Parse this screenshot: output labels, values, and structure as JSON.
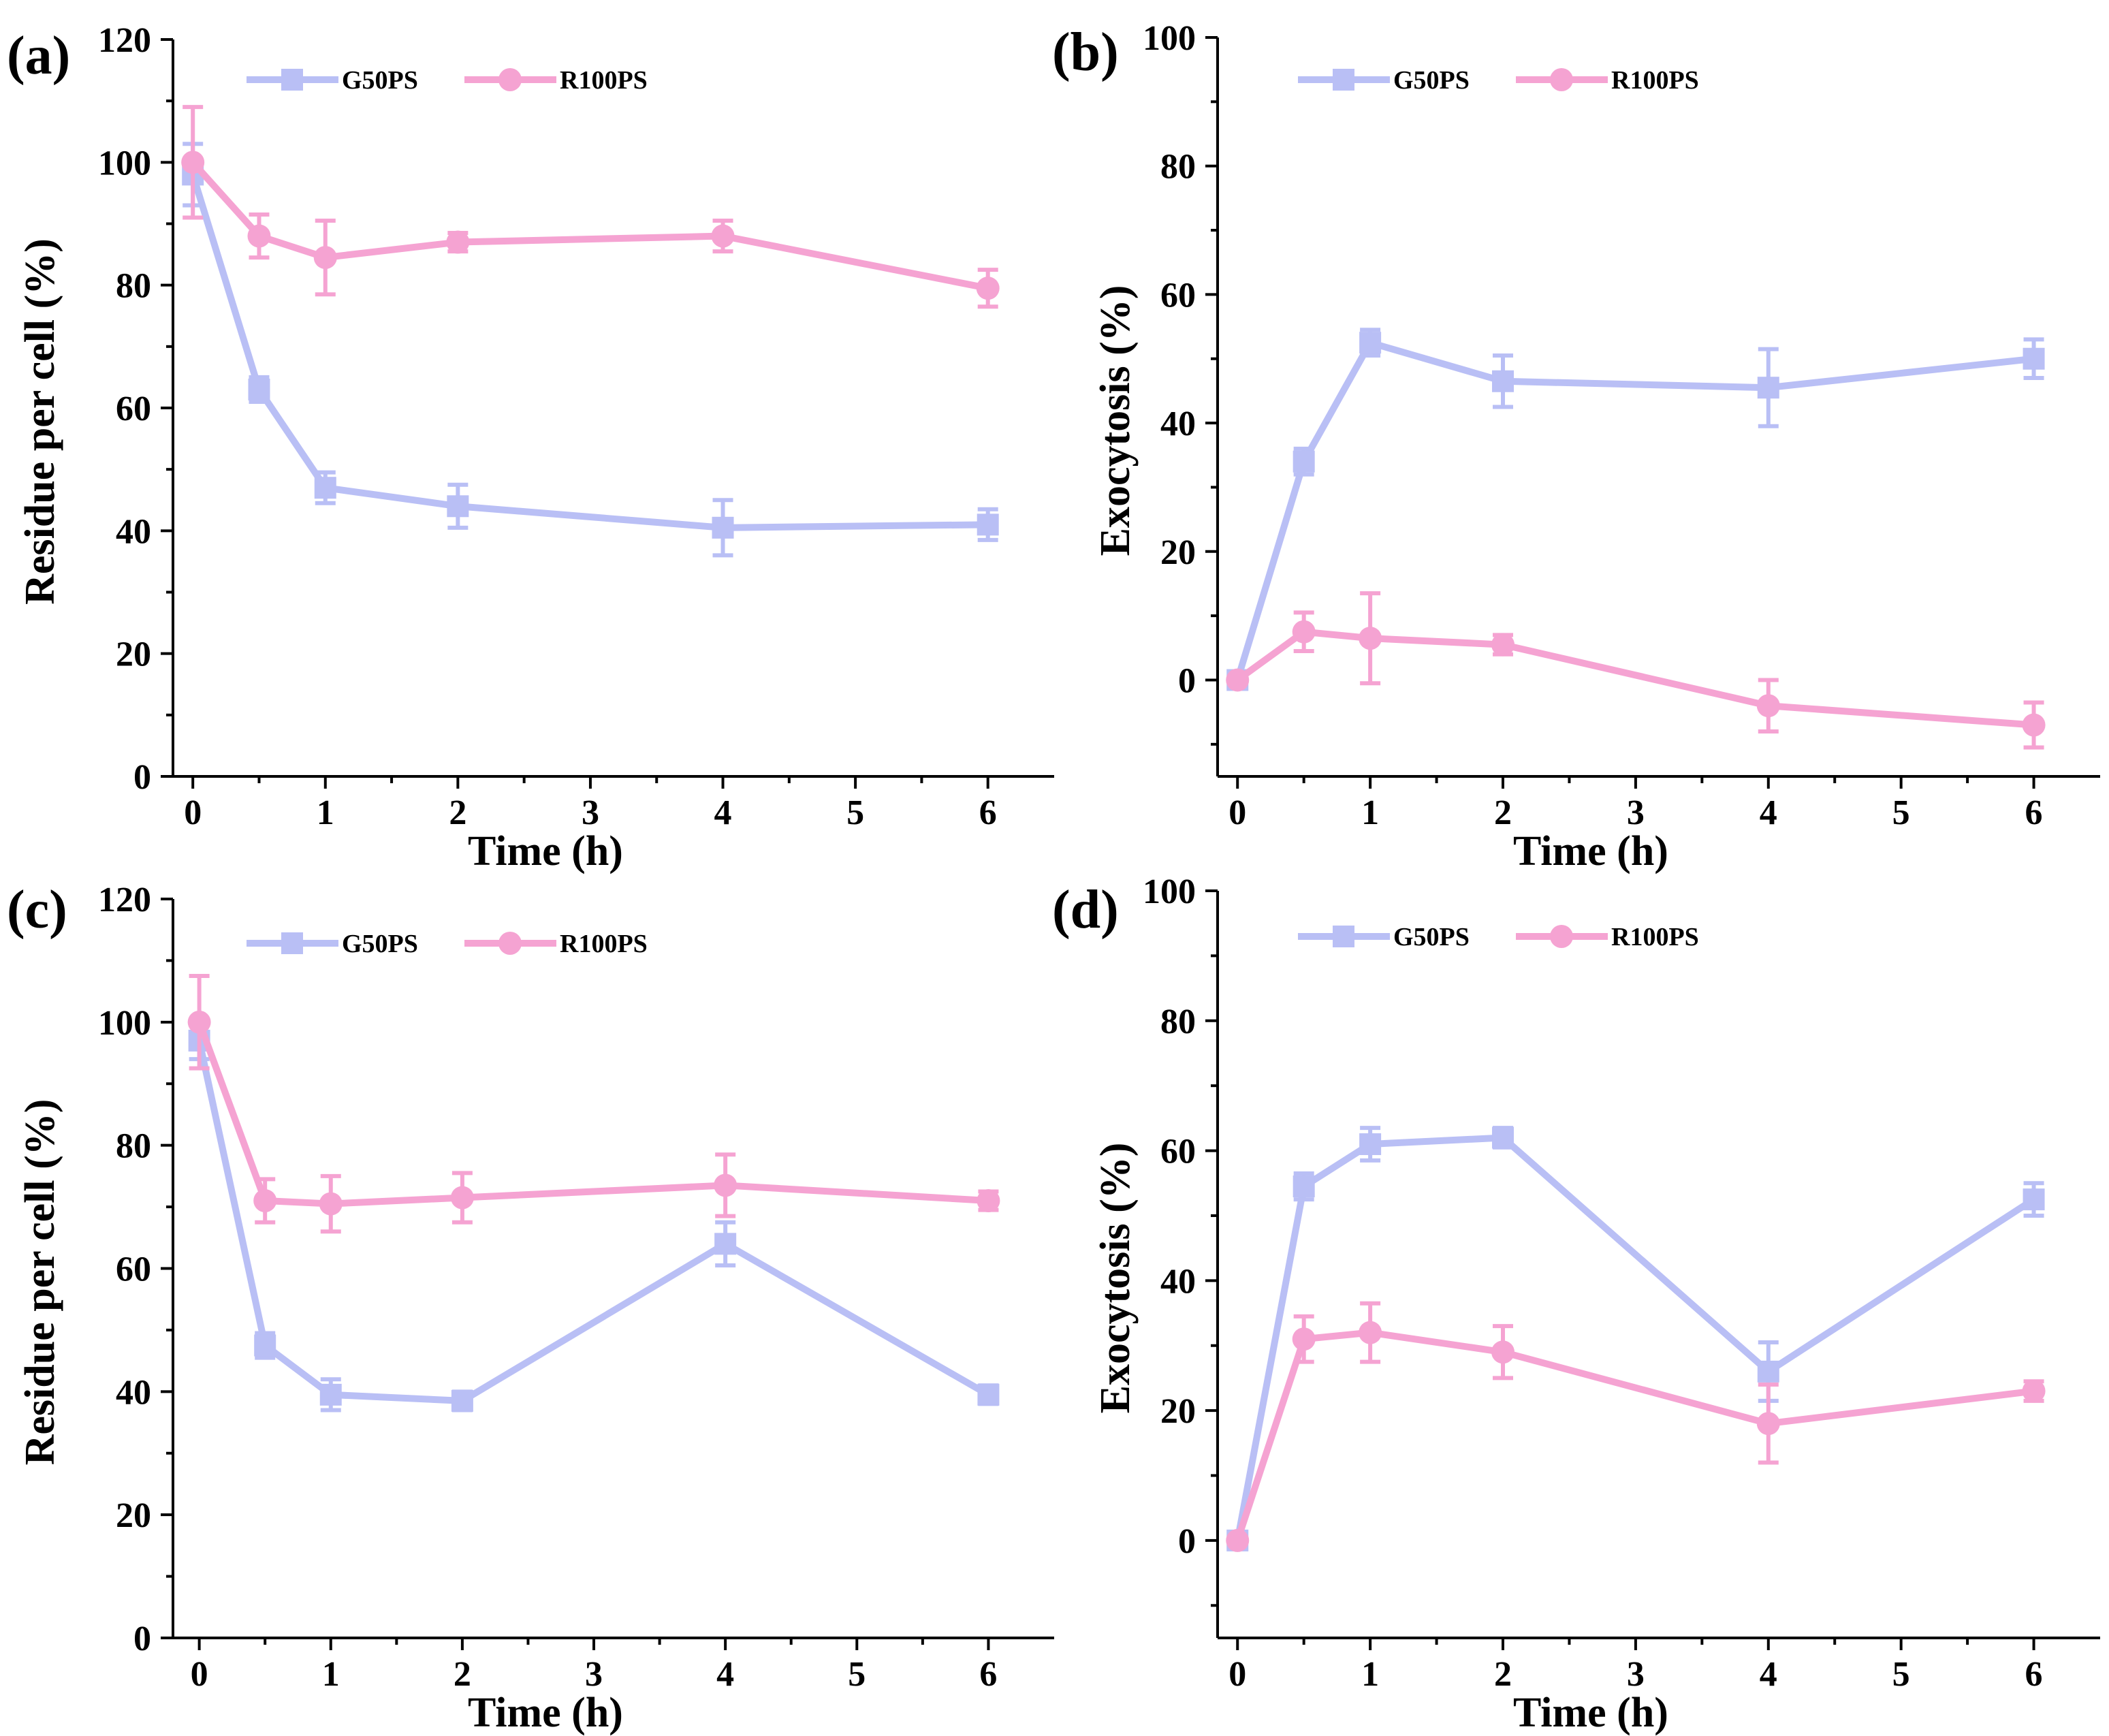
{
  "colors": {
    "G50PS": "#b9bff5",
    "R100PS": "#f5a3d2"
  },
  "chart_data": [
    {
      "type": "line",
      "panel_label": "(a)",
      "title": "",
      "xlabel": "Time (h)",
      "ylabel": "Residue per cell (%)",
      "xlim": [
        -0.15,
        6.5
      ],
      "ylim": [
        0,
        120
      ],
      "xticks": [
        0,
        1,
        2,
        3,
        4,
        5,
        6
      ],
      "yticks": [
        0,
        20,
        40,
        60,
        80,
        100,
        120
      ],
      "legend_position": "top",
      "x": [
        0,
        0.5,
        1,
        2,
        4,
        6
      ],
      "series": [
        {
          "name": "G50PS",
          "marker": "square",
          "values": [
            98,
            63,
            47,
            44,
            40.5,
            41
          ],
          "errors": [
            5,
            2,
            2.5,
            3.5,
            4.5,
            2.5
          ]
        },
        {
          "name": "R100PS",
          "marker": "circle",
          "values": [
            100,
            88,
            84.5,
            87,
            88,
            79.5
          ],
          "errors": [
            9,
            3.5,
            6,
            1.5,
            2.5,
            3
          ]
        }
      ]
    },
    {
      "type": "line",
      "panel_label": "(b)",
      "title": "",
      "xlabel": "Time (h)",
      "ylabel": "Exocytosis (%)",
      "xlim": [
        -0.15,
        6.5
      ],
      "ylim": [
        -15,
        100
      ],
      "xticks": [
        0,
        1,
        2,
        3,
        4,
        5,
        6
      ],
      "yticks": [
        0,
        20,
        40,
        60,
        80,
        100
      ],
      "legend_position": "top",
      "x": [
        0,
        0.5,
        1,
        2,
        4,
        6
      ],
      "series": [
        {
          "name": "G50PS",
          "marker": "square",
          "values": [
            0,
            34,
            52.5,
            46.5,
            45.5,
            50
          ],
          "errors": [
            0.5,
            2,
            2,
            4,
            6,
            3
          ]
        },
        {
          "name": "R100PS",
          "marker": "circle",
          "values": [
            0,
            7.5,
            6.5,
            5.5,
            -4,
            -7
          ],
          "errors": [
            0.5,
            3,
            7,
            1.5,
            4,
            3.5
          ]
        }
      ]
    },
    {
      "type": "line",
      "panel_label": "(c)",
      "title": "",
      "xlabel": "Time (h)",
      "ylabel": "Residue per cell (%)",
      "xlim": [
        -0.2,
        6.5
      ],
      "ylim": [
        0,
        120
      ],
      "xticks": [
        0,
        1,
        2,
        3,
        4,
        5,
        6
      ],
      "yticks": [
        0,
        20,
        40,
        60,
        80,
        100,
        120
      ],
      "legend_position": "top",
      "x": [
        0,
        0.5,
        1,
        2,
        4,
        6
      ],
      "series": [
        {
          "name": "G50PS",
          "marker": "square",
          "values": [
            97,
            47.5,
            39.5,
            38.5,
            64,
            39.5
          ],
          "errors": [
            3,
            2,
            2.5,
            1.5,
            3.5,
            1.5
          ]
        },
        {
          "name": "R100PS",
          "marker": "circle",
          "values": [
            100,
            71,
            70.5,
            71.5,
            73.5,
            71
          ],
          "errors": [
            7.5,
            3.5,
            4.5,
            4,
            5,
            1.5
          ]
        }
      ]
    },
    {
      "type": "line",
      "panel_label": "(d)",
      "title": "",
      "xlabel": "Time (h)",
      "ylabel": "Exocytosis (%)",
      "xlim": [
        -0.15,
        6.5
      ],
      "ylim": [
        -15,
        100
      ],
      "xticks": [
        0,
        1,
        2,
        3,
        4,
        5,
        6
      ],
      "yticks": [
        0,
        20,
        40,
        60,
        80,
        100
      ],
      "legend_position": "top",
      "x": [
        0,
        0.5,
        1,
        2,
        4,
        6
      ],
      "series": [
        {
          "name": "G50PS",
          "marker": "square",
          "values": [
            0,
            54.5,
            61,
            62,
            26,
            52.5
          ],
          "errors": [
            0.5,
            2,
            2.5,
            1.5,
            4.5,
            2.5
          ]
        },
        {
          "name": "R100PS",
          "marker": "circle",
          "values": [
            0,
            31,
            32,
            29,
            18,
            23
          ],
          "errors": [
            0.5,
            3.5,
            4.5,
            4,
            6,
            1.5
          ]
        }
      ]
    }
  ]
}
